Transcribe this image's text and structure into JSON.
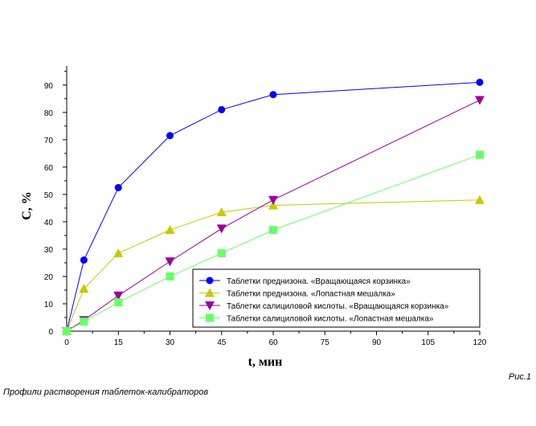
{
  "figure_label": "Рис.1",
  "caption": "Профили растворения таблеток-калибраторов",
  "chart_data": {
    "type": "line",
    "xlabel": "t, мин",
    "ylabel": "C, %",
    "xlim": [
      0,
      120
    ],
    "ylim": [
      0,
      97
    ],
    "x_ticks": [
      0,
      15,
      30,
      45,
      60,
      75,
      90,
      105,
      120
    ],
    "y_ticks": [
      0,
      10,
      20,
      30,
      40,
      50,
      60,
      70,
      80,
      90
    ],
    "grid": false,
    "legend_position": "bottom-right",
    "series": [
      {
        "name": "Таблетки преднизона. «Вращающаяся корзинка»",
        "color": "#0000ff",
        "marker": "circle",
        "x": [
          0,
          5,
          15,
          30,
          45,
          60,
          120
        ],
        "y": [
          0,
          26,
          52.5,
          71.5,
          81,
          86.5,
          91
        ]
      },
      {
        "name": "Таблетки преднизона. «Лопастная мешалка»",
        "color": "#c8c800",
        "marker": "triangle-up",
        "x": [
          0,
          5,
          15,
          30,
          45,
          60,
          120
        ],
        "y": [
          0,
          15.5,
          28.5,
          37,
          43.5,
          46,
          48
        ]
      },
      {
        "name": "Таблетки салициловой кислоты. «Вращающаяся корзинка»",
        "color": "#9c009c",
        "marker": "triangle-down",
        "x": [
          0,
          5,
          15,
          30,
          45,
          60,
          120
        ],
        "y": [
          0,
          4,
          13,
          25.5,
          37.5,
          48,
          84.5
        ]
      },
      {
        "name": "Таблетки салициловой кислоты. «Лопастная мешалка»",
        "color": "#66ff66",
        "marker": "square",
        "x": [
          0,
          5,
          15,
          30,
          45,
          60,
          120
        ],
        "y": [
          0,
          3.5,
          10.5,
          20,
          28.5,
          37,
          64.5
        ]
      }
    ]
  }
}
